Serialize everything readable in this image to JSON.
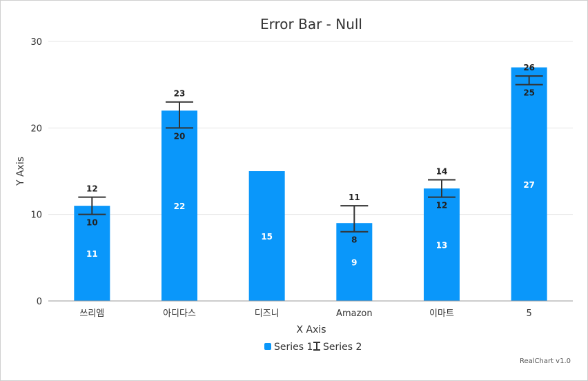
{
  "chart_data": {
    "type": "bar",
    "title": "Error Bar - Null",
    "xlabel": "X Axis",
    "ylabel": "Y Axis",
    "ylim": [
      0,
      30
    ],
    "yticks": [
      0,
      10,
      20,
      30
    ],
    "grid": true,
    "categories": [
      "쓰리엠",
      "아디다스",
      "디즈니",
      "Amazon",
      "이마트",
      "5"
    ],
    "series": [
      {
        "name": "Series 1",
        "type": "bar",
        "values": [
          11,
          22,
          15,
          9,
          13,
          27
        ]
      },
      {
        "name": "Series 2",
        "type": "errorbar",
        "low": [
          10,
          20,
          null,
          8,
          12,
          25
        ],
        "high": [
          12,
          23,
          null,
          11,
          14,
          26
        ]
      }
    ],
    "legend_position": "bottom",
    "colors": {
      "bar": "#0a97fa",
      "error": "#333333",
      "grid": "#e4e4e4",
      "axis": "#999999"
    }
  },
  "credit": "RealChart v1.0"
}
